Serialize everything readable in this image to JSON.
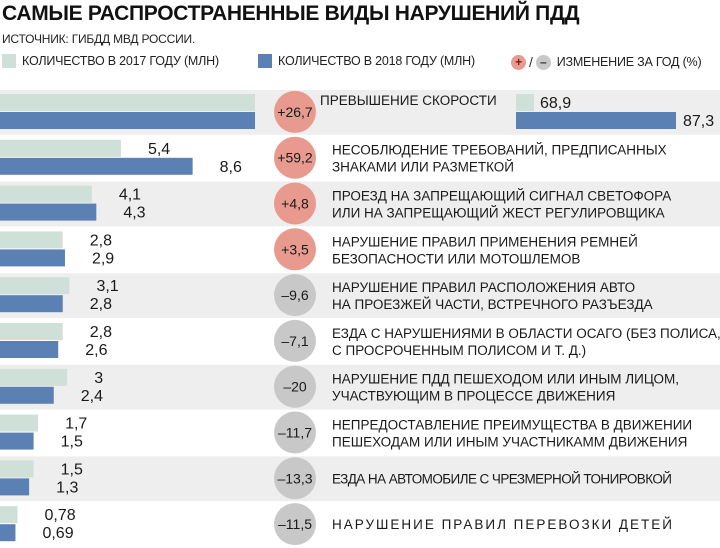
{
  "title": "САМЫЕ РАСПРОСТРАНЕННЫЕ ВИДЫ НАРУШЕНИЙ ПДД",
  "source": "ИСТОЧНИК: ГИБДД МВД РОССИИ.",
  "legend": {
    "label_2017": "КОЛИЧЕСТВО В 2017 ГОДУ (МЛН)",
    "label_2018": "КОЛИЧЕСТВО В 2018 ГОДУ (МЛН)",
    "plus_symbol": "+",
    "slash": "/",
    "minus_symbol": "–",
    "change_label": "ИЗМЕНЕНИЕ ЗА ГОД (%)"
  },
  "colors": {
    "bar_2017": "#cfe0d8",
    "bar_2018": "#5b80b4",
    "circle_positive": "#e89a8f",
    "circle_negative": "#c8c8c8",
    "row_band": "#eeeeee"
  },
  "chart_data": {
    "type": "bar",
    "orientation": "horizontal",
    "categories": [
      [
        "ПРЕВЫШЕНИЕ СКОРОСТИ"
      ],
      [
        "НЕСОБЛЮДЕНИЕ ТРЕБОВАНИЙ, ПРЕДПИСАННЫХ",
        "ЗНАКАМИ ИЛИ РАЗМЕТКОЙ"
      ],
      [
        "ПРОЕЗД НА ЗАПРЕЩАЮЩИЙ СИГНАЛ СВЕТОФОРА",
        "ИЛИ НА ЗАПРЕЩАЮЩИЙ ЖЕСТ РЕГУЛИРОВЩИКА"
      ],
      [
        "НАРУШЕНИЕ ПРАВИЛ ПРИМЕНЕНИЯ РЕМНЕЙ",
        "БЕЗОПАСНОСТИ ИЛИ МОТОШЛЕМОВ"
      ],
      [
        "НАРУШЕНИЕ ПРАВИЛ РАСПОЛОЖЕНИЯ АВТО",
        "НА ПРОЕЗЖЕЙ ЧАСТИ, ВСТРЕЧНОГО РАЗЪЕЗДА"
      ],
      [
        "ЕЗДА С НАРУШЕНИЯМИ В ОБЛАСТИ ОСАГО (БЕЗ ПОЛИСА,",
        "С ПРОСРОЧЕННЫМ ПОЛИСОМ И Т. Д.)"
      ],
      [
        "НАРУШЕНИЕ ПДД ПЕШЕХОДОМ ИЛИ ИНЫМ ЛИЦОМ,",
        "УЧАСТВУЮЩИМ В ПРОЦЕССЕ ДВИЖЕНИЯ"
      ],
      [
        "НЕПРЕДОСТАВЛЕНИЕ ПРЕИМУЩЕСТВА В ДВИЖЕНИИ",
        "ПЕШЕХОДАМ ИЛИ ИНЫМ УЧАСТНИКАММ ДВИЖЕНИЯ"
      ],
      [
        "ЕЗДА НА АВТОМОБИЛЕ С ЧРЕЗМЕРНОЙ ТОНИРОВКОЙ"
      ],
      [
        "НАРУШЕНИЕ ПРАВИЛ ПЕРЕВОЗКИ ДЕТЕЙ"
      ]
    ],
    "series": [
      {
        "name": "КОЛИЧЕСТВО В 2017 ГОДУ (МЛН)",
        "values": [
          68.9,
          5.4,
          4.1,
          2.8,
          3.1,
          2.8,
          3,
          1.7,
          1.5,
          0.78
        ]
      },
      {
        "name": "КОЛИЧЕСТВО В 2018 ГОДУ (МЛН)",
        "values": [
          87.3,
          8.6,
          4.3,
          2.9,
          2.8,
          2.6,
          2.4,
          1.5,
          1.3,
          0.69
        ]
      }
    ],
    "value_labels_2017": [
      "68,9",
      "5,4",
      "4,1",
      "2,8",
      "3,1",
      "2,8",
      "3",
      "1,7",
      "1,5",
      "0,78"
    ],
    "value_labels_2018": [
      "87,3",
      "8,6",
      "4,3",
      "2,9",
      "2,8",
      "2,6",
      "2,4",
      "1,5",
      "1,3",
      "0,69"
    ],
    "change_percent": [
      26.7,
      59.2,
      4.8,
      3.5,
      -9.6,
      -7.1,
      -20,
      -11.7,
      -13.3,
      -11.5
    ],
    "change_labels": [
      "+26,7",
      "+59,2",
      "+4,8",
      "+3,5",
      "–9,6",
      "–7,1",
      "–20",
      "–11,7",
      "–13,3",
      "–11,5"
    ],
    "scale_note": "first row bars are broken (truncated) because of large values"
  }
}
